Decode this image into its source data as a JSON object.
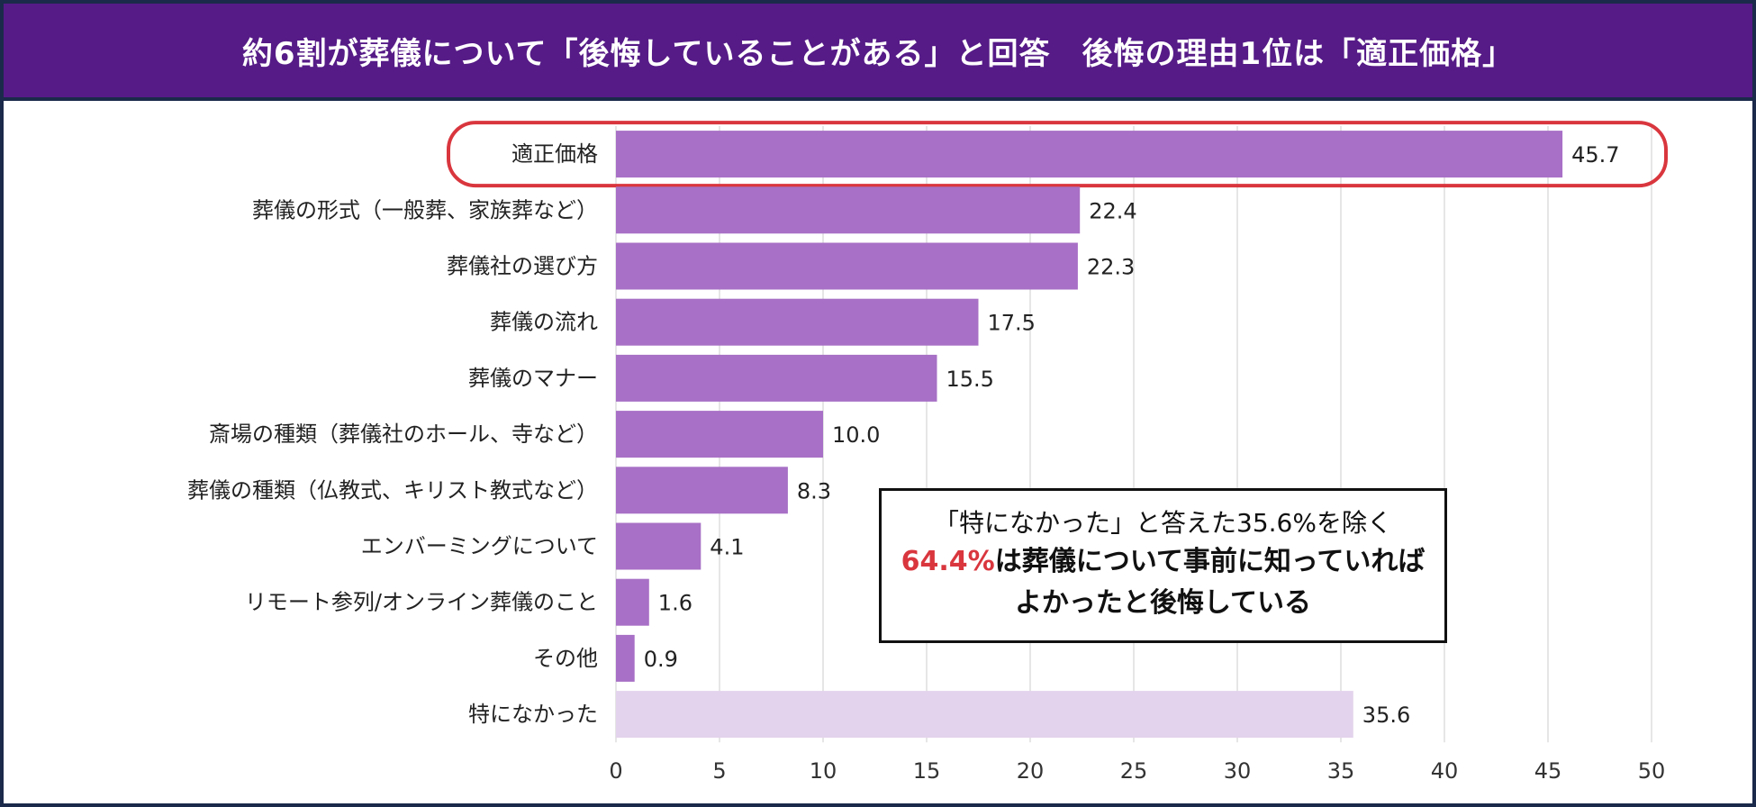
{
  "title": "約6割が葬儀について「後悔していることがある」と回答　後悔の理由1位は「適正価格」",
  "colors": {
    "title_bg": "#561b87",
    "bar": "#a870c6",
    "bar_none": "#e3d3ec",
    "highlight": "#d9363e"
  },
  "callout": {
    "line1": "「特になかった」と答えた35.6%を除く",
    "line2_highlight": "64.4%",
    "line2_rest": "は葬儀について事前に知っていれば",
    "line3": "よかったと後悔している"
  },
  "chart_data": {
    "type": "bar",
    "orientation": "horizontal",
    "categories": [
      "適正価格",
      "葬儀の形式（一般葬、家族葬など）",
      "葬儀社の選び方",
      "葬儀の流れ",
      "葬儀のマナー",
      "斎場の種類（葬儀社のホール、寺など）",
      "葬儀の種類（仏教式、キリスト教式など）",
      "エンバーミングについて",
      "リモート参列/オンライン葬儀のこと",
      "その他",
      "特になかった"
    ],
    "values": [
      45.7,
      22.4,
      22.3,
      17.5,
      15.5,
      10.0,
      8.3,
      4.1,
      1.6,
      0.9,
      35.6
    ],
    "value_labels": [
      "45.7",
      "22.4",
      "22.3",
      "17.5",
      "15.5",
      "10.0",
      "8.3",
      "4.1",
      "1.6",
      "0.9",
      "35.6"
    ],
    "xlim": [
      0,
      50
    ],
    "xticks": [
      "0",
      "5",
      "10",
      "15",
      "20",
      "25",
      "30",
      "35",
      "40",
      "45",
      "50"
    ],
    "grid": true,
    "highlighted_category": "適正価格"
  }
}
